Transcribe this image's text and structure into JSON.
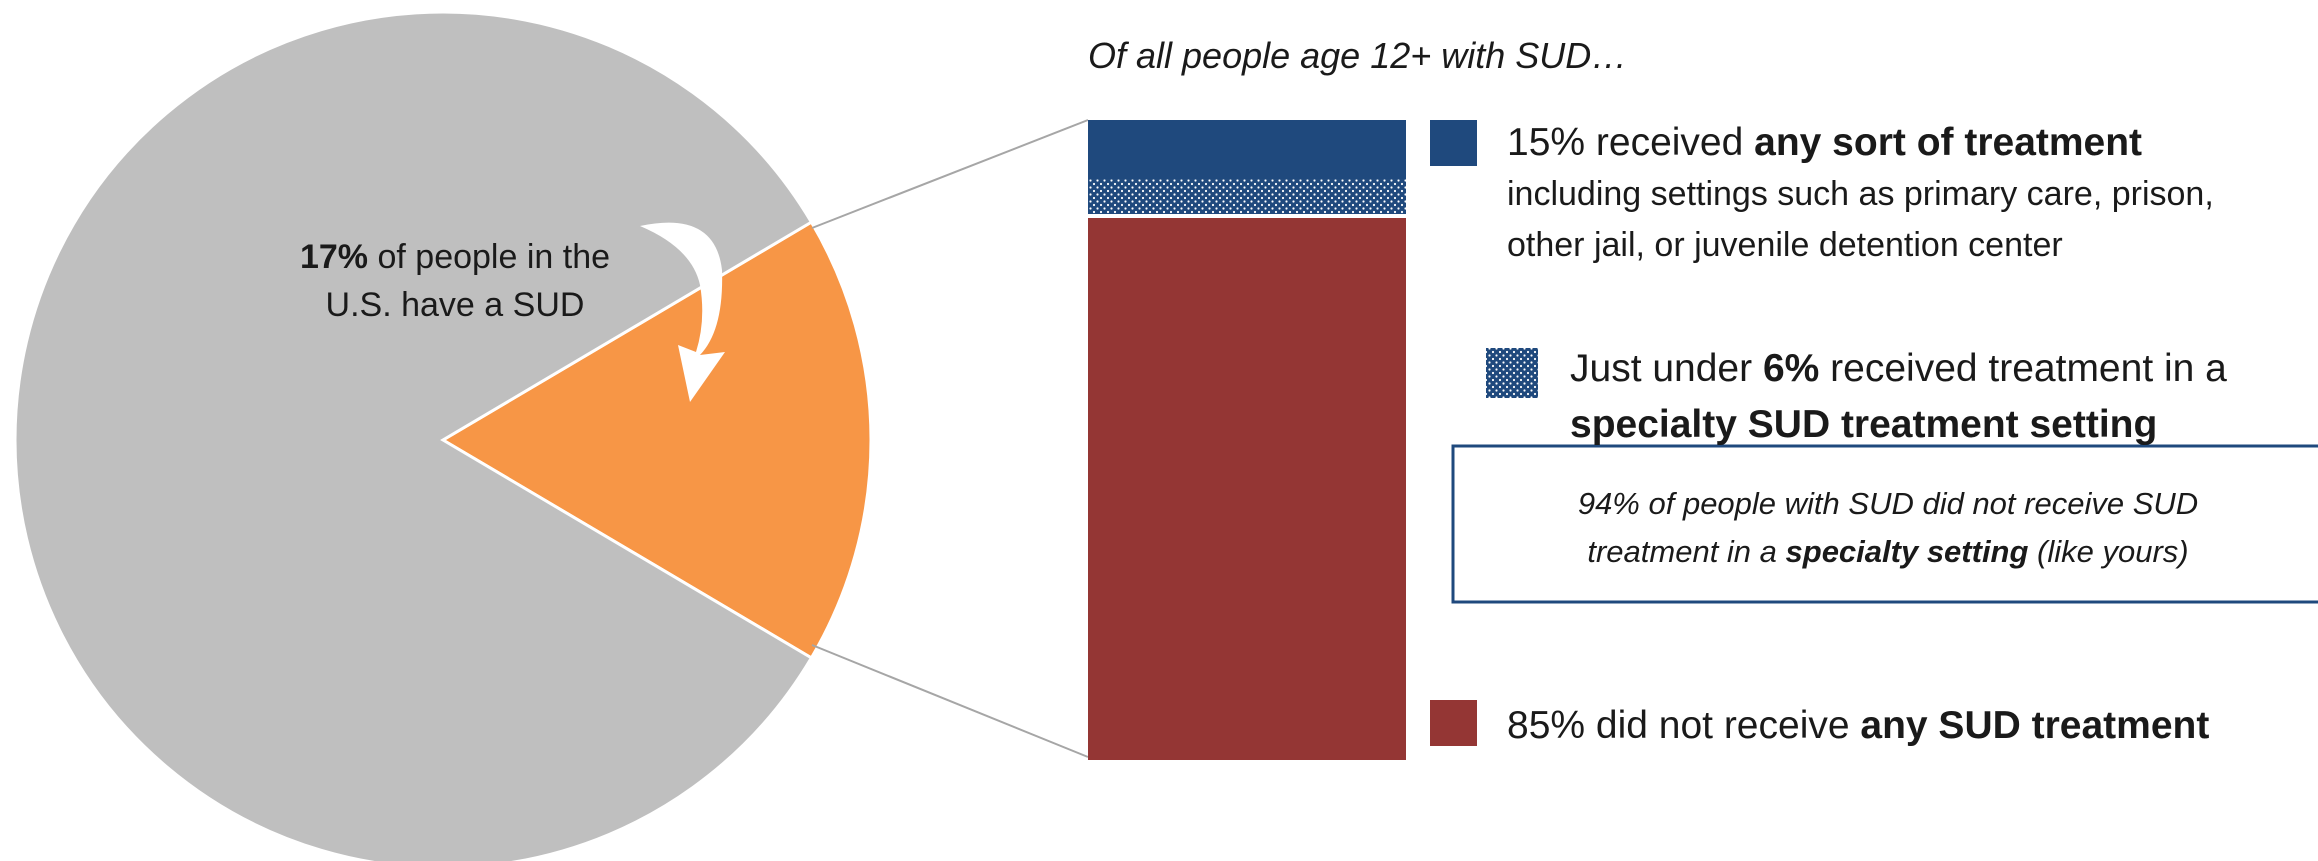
{
  "chart_data": {
    "type": "pie",
    "pie": {
      "slices": [
        {
          "label": "SUD",
          "value": 17,
          "color": "#F79646"
        },
        {
          "label": "no SUD",
          "value": 83,
          "color": "#BFBFBF"
        }
      ],
      "callout": {
        "bold": "17%",
        "line1_rest": " of people in the",
        "line2": "U.S. have a SUD"
      }
    },
    "bar": {
      "title": "Of all people age 12+ with SUD…",
      "segments": [
        {
          "key": "treated",
          "value": 9.3,
          "color": "#1F497D",
          "pattern": "solid"
        },
        {
          "key": "specialty",
          "value": 5.7,
          "color": "#1F497D",
          "pattern": "dotted"
        },
        {
          "key": "untreated",
          "value": 85,
          "color": "#943634",
          "pattern": "solid"
        }
      ]
    },
    "legend": {
      "any": {
        "pre": "15% received ",
        "bold": "any sort of treatment",
        "line2": "including settings such as primary care, prison,",
        "line3": "other jail, or juvenile detention center"
      },
      "specialty": {
        "pre": "Just under ",
        "bold1": "6%",
        "mid": " received treatment in a",
        "bold2": "specialty SUD treatment setting",
        "note_line1": "94% of people with SUD did not receive SUD",
        "note_pre": "treatment in a ",
        "note_bold": "specialty setting",
        "note_post": " (like yours)"
      },
      "none": {
        "pre": "85% did not receive ",
        "bold": "any SUD treatment"
      }
    }
  }
}
